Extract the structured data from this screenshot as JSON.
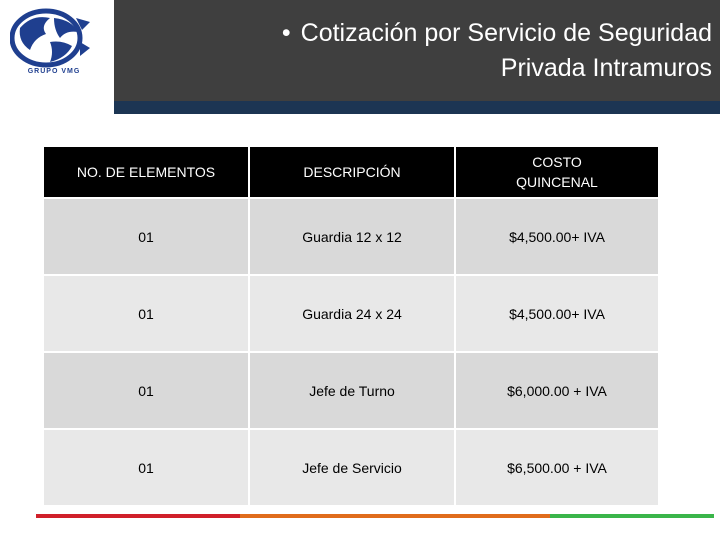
{
  "brand": {
    "logo_text": "GRUPO VMG"
  },
  "header": {
    "bullet": "•",
    "title_line1": "Cotización por Servicio de Seguridad",
    "title_line2": "Privada Intramuros"
  },
  "table": {
    "headers": [
      "NO. DE ELEMENTOS",
      "DESCRIPCIÓN",
      "COSTO QUINCENAL"
    ],
    "header_cost_line1": "COSTO",
    "header_cost_line2": "QUINCENAL",
    "rows": [
      {
        "elements": "01",
        "description": "Guardia  12 x 12",
        "cost": "$4,500.00+ IVA"
      },
      {
        "elements": "01",
        "description": "Guardia 24 x 24",
        "cost": "$4,500.00+ IVA"
      },
      {
        "elements": "01",
        "description": "Jefe de Turno",
        "cost": "$6,000.00 + IVA"
      },
      {
        "elements": "01",
        "description": "Jefe de Servicio",
        "cost": "$6,500.00 + IVA"
      }
    ]
  },
  "colors": {
    "header_bg": "#3f3f3f",
    "header_accent": "#1c3553",
    "footer_red": "#d0202a",
    "footer_orange": "#e06c1c",
    "footer_green": "#3ab54a"
  }
}
